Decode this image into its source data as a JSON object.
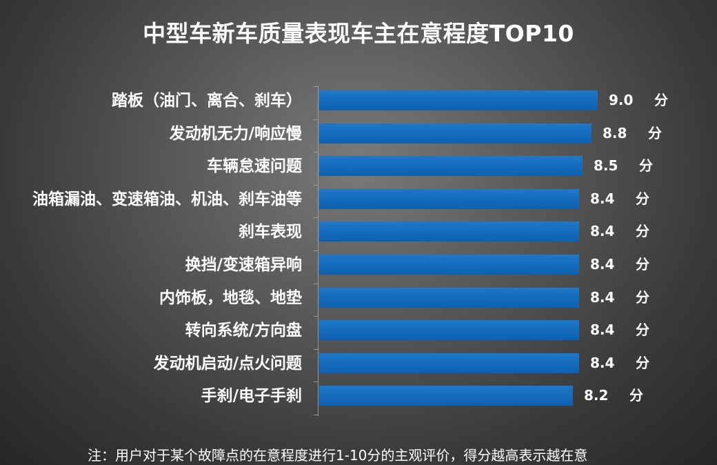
{
  "chart_data": {
    "type": "bar",
    "orientation": "horizontal",
    "title": "中型车新车质量表现车主在意程度TOP10",
    "categories": [
      "踏板（油门、离合、刹车）",
      "发动机无力/响应慢",
      "车辆怠速问题",
      "油箱漏油、变速箱油、机油、刹车油等",
      "刹车表现",
      "换挡/变速箱异响",
      "内饰板，地毯、地垫",
      "转向系统/方向盘",
      "发动机启动/点火问题",
      "手刹/电子手刹"
    ],
    "values": [
      9.0,
      8.8,
      8.5,
      8.4,
      8.4,
      8.4,
      8.4,
      8.4,
      8.4,
      8.2
    ],
    "value_labels": [
      "9.0",
      "8.8",
      "8.5",
      "8.4",
      "8.4",
      "8.4",
      "8.4",
      "8.4",
      "8.4",
      "8.2"
    ],
    "unit": "分",
    "bar_color": "#1470c0",
    "grid": false,
    "legend": "none",
    "footnote": "注：用户对于某个故障点的在意程度进行1-10分的主观评价，得分越高表示越在意"
  }
}
